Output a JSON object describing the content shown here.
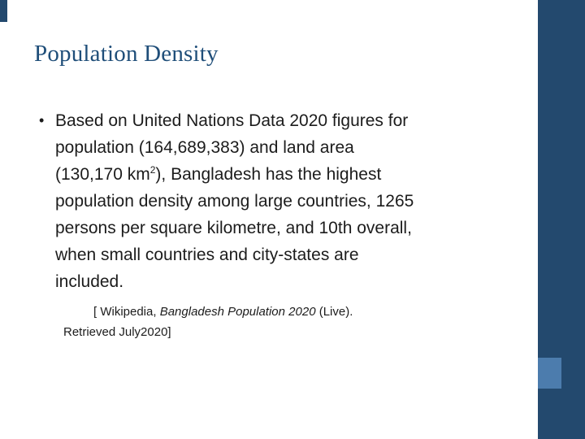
{
  "slide": {
    "title": "Population Density",
    "bullet": {
      "marker": "•",
      "lines": {
        "l1": "Based on United Nations Data 2020 figures for",
        "l2": "population (164,689,383) and land area",
        "l3_pre": "(130,170 km",
        "l3_sup": "2",
        "l3_post": "), Bangladesh has the highest",
        "l4": "population density among large countries, 1265",
        "l5": "persons per square kilometre, and 10th overall,",
        "l6": "when small countries and city-states are",
        "l7": "included."
      }
    },
    "citation": {
      "prefix": "[ Wikipedia, ",
      "italic": "Bangladesh Population 2020",
      "suffix": " (Live).",
      "line2": "Retrieved July2020]"
    },
    "colors": {
      "title": "#1F4E79",
      "body_text": "#1C1C1C",
      "background": "#FFFFFF",
      "sidebar": "#23496E",
      "accent_square": "#4C7CAD"
    }
  }
}
